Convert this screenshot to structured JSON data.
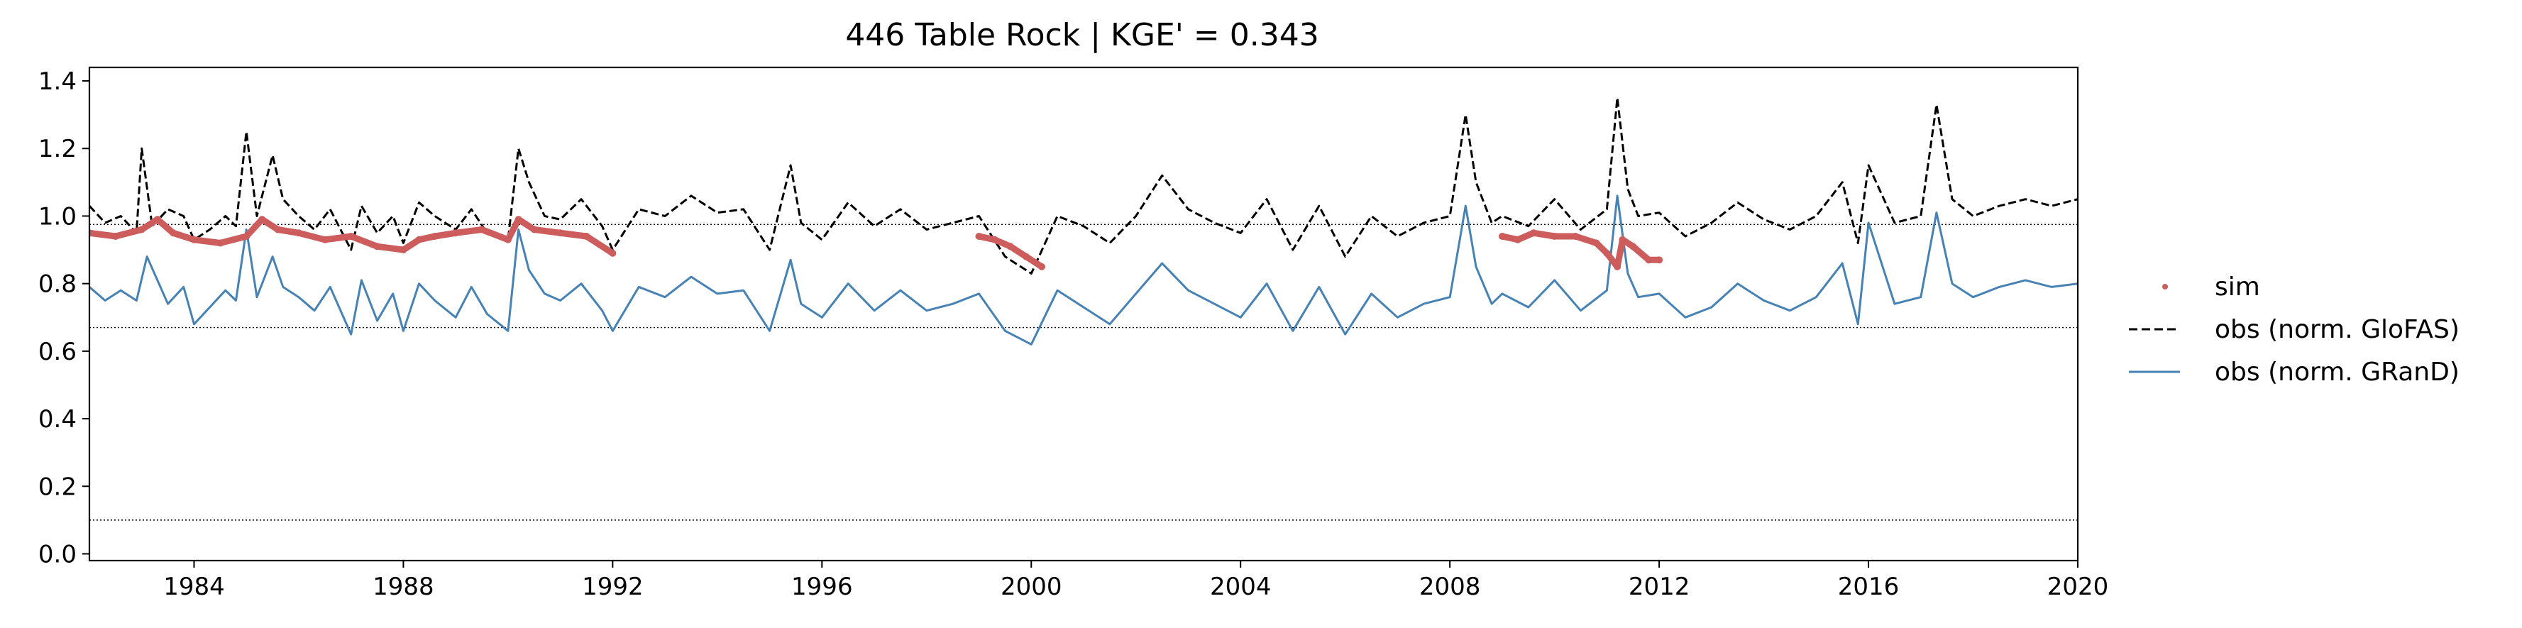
{
  "chart_data": {
    "type": "line",
    "title": "446  Table Rock | KGE' = 0.343",
    "xlabel": "",
    "ylabel": "",
    "xlim": [
      1982.0,
      2020.0
    ],
    "ylim": [
      -0.02,
      1.44
    ],
    "x_ticks": [
      1984,
      1988,
      1992,
      1996,
      2000,
      2004,
      2008,
      2012,
      2016,
      2020
    ],
    "y_ticks": [
      0.0,
      0.2,
      0.4,
      0.6,
      0.8,
      1.0,
      1.2,
      1.4
    ],
    "x_tick_labels": [
      "1984",
      "1988",
      "1992",
      "1996",
      "2000",
      "2004",
      "2008",
      "2012",
      "2016",
      "2020"
    ],
    "y_tick_labels": [
      "0.0",
      "0.2",
      "0.4",
      "0.6",
      "0.8",
      "1.0",
      "1.2",
      "1.4"
    ],
    "reference_lines": [
      0.975,
      0.67,
      0.1
    ],
    "grid": false,
    "legend_position": "outside-right",
    "legend": [
      "sim",
      "obs (norm. GloFAS)",
      "obs (norm. GRanD)"
    ],
    "series": [
      {
        "name": "sim",
        "style": "points",
        "color": "#cd5c5c",
        "segments": [
          {
            "x": [
              1982.0,
              1982.5,
              1983.0,
              1983.3,
              1983.6,
              1984.0,
              1984.5,
              1985.0,
              1985.3,
              1985.6,
              1986.0,
              1986.5,
              1987.0,
              1987.5,
              1988.0,
              1988.3,
              1988.6,
              1989.0,
              1989.5,
              1990.0,
              1990.2,
              1990.5,
              1991.0,
              1991.5,
              1992.0
            ],
            "y": [
              0.95,
              0.94,
              0.96,
              0.99,
              0.95,
              0.93,
              0.92,
              0.94,
              0.99,
              0.96,
              0.95,
              0.93,
              0.94,
              0.91,
              0.9,
              0.93,
              0.94,
              0.95,
              0.96,
              0.93,
              0.99,
              0.96,
              0.95,
              0.94,
              0.89
            ]
          },
          {
            "x": [
              1999.0,
              1999.3,
              1999.6,
              1999.9,
              2000.2
            ],
            "y": [
              0.94,
              0.93,
              0.91,
              0.88,
              0.85
            ]
          },
          {
            "x": [
              2009.0,
              2009.3,
              2009.6,
              2010.0,
              2010.4,
              2010.8,
              2011.0,
              2011.2,
              2011.3,
              2011.5,
              2011.8,
              2012.0
            ],
            "y": [
              0.94,
              0.93,
              0.95,
              0.94,
              0.94,
              0.92,
              0.89,
              0.85,
              0.93,
              0.91,
              0.87,
              0.87
            ]
          }
        ]
      },
      {
        "name": "obs (norm. GloFAS)",
        "style": "dashed",
        "color": "#000000",
        "x": [
          1982.0,
          1982.3,
          1982.6,
          1982.9,
          1983.0,
          1983.2,
          1983.5,
          1983.8,
          1984.0,
          1984.3,
          1984.6,
          1984.8,
          1985.0,
          1985.2,
          1985.5,
          1985.7,
          1986.0,
          1986.3,
          1986.6,
          1987.0,
          1987.2,
          1987.5,
          1987.8,
          1988.0,
          1988.3,
          1988.6,
          1989.0,
          1989.3,
          1989.6,
          1990.0,
          1990.2,
          1990.4,
          1990.7,
          1991.0,
          1991.4,
          1991.8,
          1992.0,
          1992.5,
          1993.0,
          1993.5,
          1994.0,
          1994.5,
          1995.0,
          1995.4,
          1995.6,
          1996.0,
          1996.5,
          1997.0,
          1997.5,
          1998.0,
          1998.5,
          1999.0,
          1999.5,
          2000.0,
          2000.5,
          2001.0,
          2001.5,
          2002.0,
          2002.5,
          2003.0,
          2003.5,
          2004.0,
          2004.5,
          2005.0,
          2005.5,
          2006.0,
          2006.5,
          2007.0,
          2007.5,
          2008.0,
          2008.3,
          2008.5,
          2008.8,
          2009.0,
          2009.5,
          2010.0,
          2010.5,
          2011.0,
          2011.2,
          2011.4,
          2011.6,
          2012.0,
          2012.5,
          2013.0,
          2013.5,
          2014.0,
          2014.5,
          2015.0,
          2015.5,
          2015.8,
          2016.0,
          2016.5,
          2017.0,
          2017.3,
          2017.6,
          2018.0,
          2018.5,
          2019.0,
          2019.5,
          2020.0
        ],
        "y": [
          1.03,
          0.98,
          1.0,
          0.95,
          1.2,
          0.97,
          1.02,
          1.0,
          0.93,
          0.96,
          1.0,
          0.97,
          1.25,
          1.0,
          1.18,
          1.05,
          1.0,
          0.96,
          1.02,
          0.9,
          1.03,
          0.95,
          1.0,
          0.92,
          1.04,
          1.0,
          0.96,
          1.02,
          0.95,
          0.93,
          1.2,
          1.1,
          1.0,
          0.99,
          1.05,
          0.97,
          0.9,
          1.02,
          1.0,
          1.06,
          1.01,
          1.02,
          0.9,
          1.15,
          0.98,
          0.93,
          1.04,
          0.97,
          1.02,
          0.96,
          0.98,
          1.0,
          0.88,
          0.83,
          1.0,
          0.97,
          0.92,
          1.0,
          1.12,
          1.02,
          0.98,
          0.95,
          1.05,
          0.9,
          1.03,
          0.88,
          1.0,
          0.94,
          0.98,
          1.0,
          1.3,
          1.1,
          0.98,
          1.0,
          0.97,
          1.05,
          0.96,
          1.02,
          1.35,
          1.08,
          1.0,
          1.01,
          0.94,
          0.98,
          1.04,
          0.99,
          0.96,
          1.0,
          1.1,
          0.92,
          1.15,
          0.98,
          1.0,
          1.33,
          1.05,
          1.0,
          1.03,
          1.05,
          1.03,
          1.05
        ]
      },
      {
        "name": "obs (norm. GRanD)",
        "style": "solid",
        "color": "#4682b4",
        "x": [
          1982.0,
          1982.3,
          1982.6,
          1982.9,
          1983.1,
          1983.5,
          1983.8,
          1984.0,
          1984.3,
          1984.6,
          1984.8,
          1985.0,
          1985.2,
          1985.5,
          1985.7,
          1986.0,
          1986.3,
          1986.6,
          1987.0,
          1987.2,
          1987.5,
          1987.8,
          1988.0,
          1988.3,
          1988.6,
          1989.0,
          1989.3,
          1989.6,
          1990.0,
          1990.2,
          1990.4,
          1990.7,
          1991.0,
          1991.4,
          1991.8,
          1992.0,
          1992.5,
          1993.0,
          1993.5,
          1994.0,
          1994.5,
          1995.0,
          1995.4,
          1995.6,
          1996.0,
          1996.5,
          1997.0,
          1997.5,
          1998.0,
          1998.5,
          1999.0,
          1999.5,
          2000.0,
          2000.5,
          2001.0,
          2001.5,
          2002.0,
          2002.5,
          2003.0,
          2003.5,
          2004.0,
          2004.5,
          2005.0,
          2005.5,
          2006.0,
          2006.5,
          2007.0,
          2007.5,
          2008.0,
          2008.3,
          2008.5,
          2008.8,
          2009.0,
          2009.5,
          2010.0,
          2010.5,
          2011.0,
          2011.2,
          2011.4,
          2011.6,
          2012.0,
          2012.5,
          2013.0,
          2013.5,
          2014.0,
          2014.5,
          2015.0,
          2015.5,
          2015.8,
          2016.0,
          2016.5,
          2017.0,
          2017.3,
          2017.6,
          2018.0,
          2018.5,
          2019.0,
          2019.5,
          2020.0
        ],
        "y": [
          0.79,
          0.75,
          0.78,
          0.75,
          0.88,
          0.74,
          0.79,
          0.68,
          0.73,
          0.78,
          0.75,
          0.96,
          0.76,
          0.88,
          0.79,
          0.76,
          0.72,
          0.79,
          0.65,
          0.81,
          0.69,
          0.77,
          0.66,
          0.8,
          0.75,
          0.7,
          0.79,
          0.71,
          0.66,
          0.96,
          0.84,
          0.77,
          0.75,
          0.8,
          0.72,
          0.66,
          0.79,
          0.76,
          0.82,
          0.77,
          0.78,
          0.66,
          0.87,
          0.74,
          0.7,
          0.8,
          0.72,
          0.78,
          0.72,
          0.74,
          0.77,
          0.66,
          0.62,
          0.78,
          0.73,
          0.68,
          0.77,
          0.86,
          0.78,
          0.74,
          0.7,
          0.8,
          0.66,
          0.79,
          0.65,
          0.77,
          0.7,
          0.74,
          0.76,
          1.03,
          0.85,
          0.74,
          0.77,
          0.73,
          0.81,
          0.72,
          0.78,
          1.06,
          0.83,
          0.76,
          0.77,
          0.7,
          0.73,
          0.8,
          0.75,
          0.72,
          0.76,
          0.86,
          0.68,
          0.98,
          0.74,
          0.76,
          1.01,
          0.8,
          0.76,
          0.79,
          0.81,
          0.79,
          0.8
        ]
      }
    ]
  }
}
